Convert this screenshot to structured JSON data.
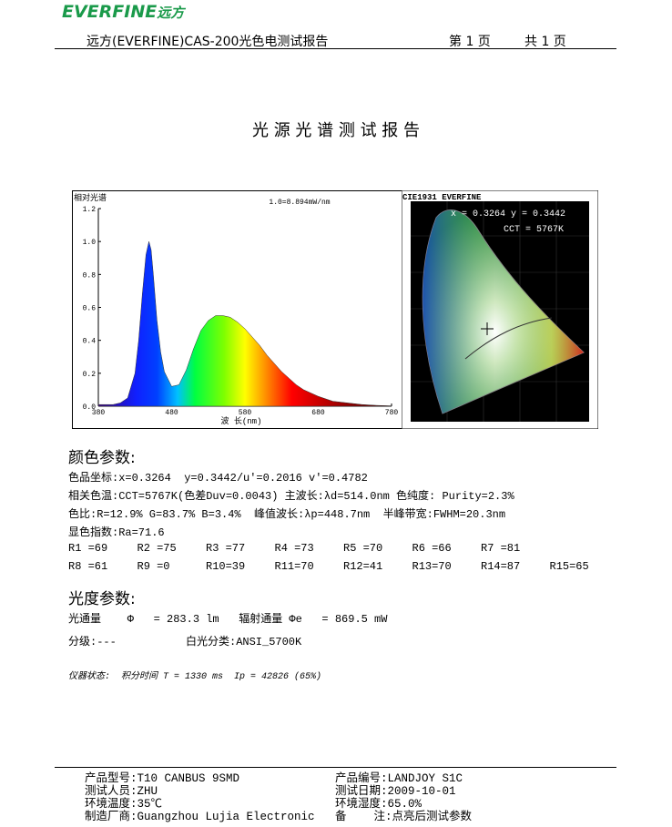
{
  "header": {
    "logo": "EVERFINE",
    "logo_cn": "远方",
    "title": "远方(EVERFINE)CAS-200光色电测试报告",
    "page": "第 1 页",
    "total": "共 1 页"
  },
  "title": "光 源 光 谱 测 试 报 告",
  "chart_data": {
    "type": "area",
    "y_label": "相对光谱",
    "annotation": "1.0=8.894mW/nm",
    "x_label": "波 长(nm)",
    "x": [
      380,
      390,
      400,
      410,
      420,
      430,
      435,
      440,
      445,
      449,
      452,
      455,
      460,
      465,
      470,
      480,
      490,
      500,
      510,
      520,
      530,
      540,
      550,
      560,
      570,
      580,
      590,
      600,
      610,
      620,
      630,
      640,
      650,
      660,
      670,
      680,
      690,
      700,
      720,
      740,
      760,
      780
    ],
    "values": [
      0.01,
      0.01,
      0.01,
      0.02,
      0.05,
      0.2,
      0.4,
      0.68,
      0.92,
      1.0,
      0.95,
      0.8,
      0.52,
      0.33,
      0.21,
      0.12,
      0.13,
      0.22,
      0.35,
      0.46,
      0.52,
      0.55,
      0.55,
      0.54,
      0.51,
      0.47,
      0.42,
      0.37,
      0.31,
      0.26,
      0.21,
      0.17,
      0.13,
      0.1,
      0.08,
      0.06,
      0.045,
      0.03,
      0.02,
      0.01,
      0.005,
      0.002
    ],
    "xlim": [
      380,
      780
    ],
    "ylim": [
      0,
      1.2
    ],
    "xticks": [
      380,
      480,
      580,
      680,
      780
    ],
    "yticks": [
      {
        "value": 0,
        "label": "0.0"
      },
      0.2,
      0.4,
      0.6,
      0.8,
      {
        "value": 1,
        "label": "1.0"
      },
      1.2
    ]
  },
  "cie": {
    "title": "CIE1931 EVERFINE",
    "coords": "x = 0.3264 y = 0.3442",
    "cct": "CCT = 5767K"
  },
  "color_params": {
    "heading": "颜色参数:",
    "lines": [
      "色品坐标:x=0.3264  y=0.3442/u'=0.2016 v'=0.4782",
      "相关色温:CCT=5767K(色差Duv=0.0043) 主波长:λd=514.0nm 色纯度: Purity=2.3%",
      "色比:R=12.9% G=83.7% B=3.4%  峰值波长:λp=448.7nm  半峰带宽:FWHM=20.3nm",
      "显色指数:Ra=71.6"
    ],
    "ri": [
      [
        "R1 =69",
        "R2 =75",
        "R3 =77",
        "R4 =73",
        "R5 =70",
        "R6 =66",
        "R7 =81"
      ],
      [
        "R8 =61",
        "R9 =0",
        "R10=39",
        "R11=70",
        "R12=41",
        "R13=70",
        "R14=87",
        "R15=65"
      ]
    ]
  },
  "photo_params": {
    "heading": "光度参数:",
    "flux": "光通量    Φ   = 283.3 lm   辐射通量 Φe   = 869.5 mW",
    "grade": "分级:---",
    "white_class": "白光分类:ANSI_5700K",
    "instrument": "仪器状态:  积分时间 T = 1330 ms  Ip = 42826 (65%)"
  },
  "footer": [
    [
      "产品型号:T10 CANBUS 9SMD",
      "产品编号:LANDJOY S1C"
    ],
    [
      "测试人员:ZHU",
      "测试日期:2009-10-01"
    ],
    [
      "环境温度:35℃",
      "环境湿度:65.0%"
    ],
    [
      "制造厂商:Guangzhou Lujia Electronic",
      "备    注:点亮后测试参数"
    ]
  ]
}
